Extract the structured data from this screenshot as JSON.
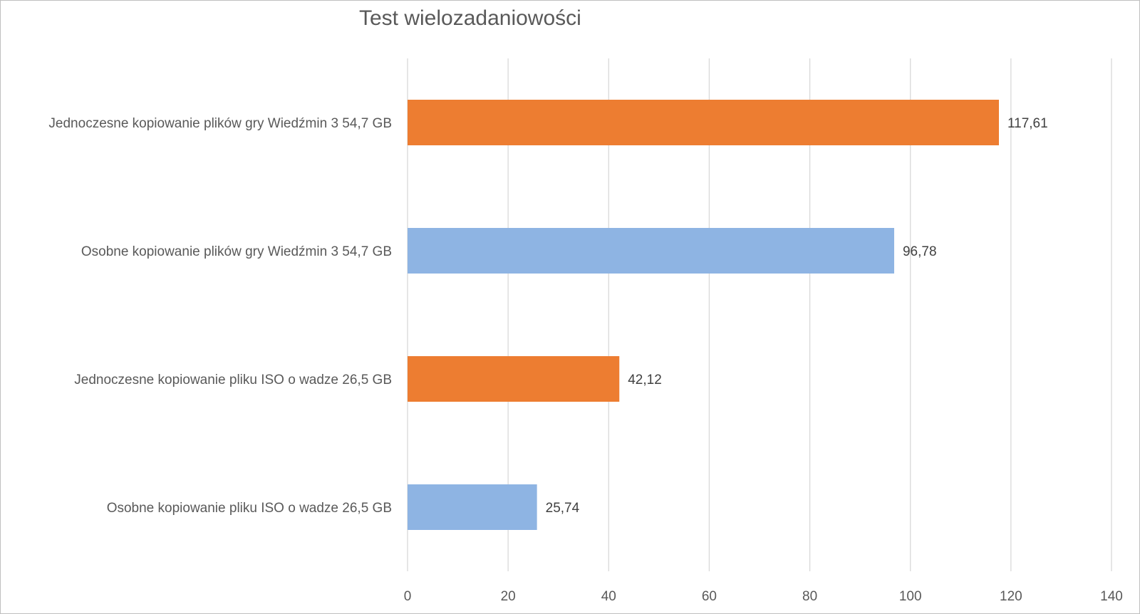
{
  "chart_data": {
    "type": "bar",
    "orientation": "horizontal",
    "title": "Test wielozadaniowości",
    "categories": [
      "Jednoczesne kopiowanie plików gry Wiedźmin 3 54,7 GB",
      "Osobne kopiowanie plików gry Wiedźmin 3 54,7 GB",
      "Jednoczesne kopiowanie pliku ISO o wadze 26,5 GB",
      "Osobne kopiowanie pliku ISO o wadze 26,5 GB"
    ],
    "values": [
      117.61,
      96.78,
      42.12,
      25.74
    ],
    "value_labels": [
      "117,61",
      "96,78",
      "42,12",
      "25,74"
    ],
    "bar_colors": [
      "#ED7D31",
      "#8EB4E3",
      "#ED7D31",
      "#8EB4E3"
    ],
    "xlim": [
      0,
      140
    ],
    "xticks": [
      0,
      20,
      40,
      60,
      80,
      100,
      120,
      140
    ],
    "xtick_labels": [
      "0",
      "20",
      "40",
      "60",
      "80",
      "100",
      "120",
      "140"
    ],
    "grid": "vertical",
    "legend": "none",
    "xlabel": "",
    "ylabel": ""
  },
  "colors": {
    "gridline": "#d9d9d9",
    "text": "#595959",
    "frame": "#bfbfbf"
  }
}
